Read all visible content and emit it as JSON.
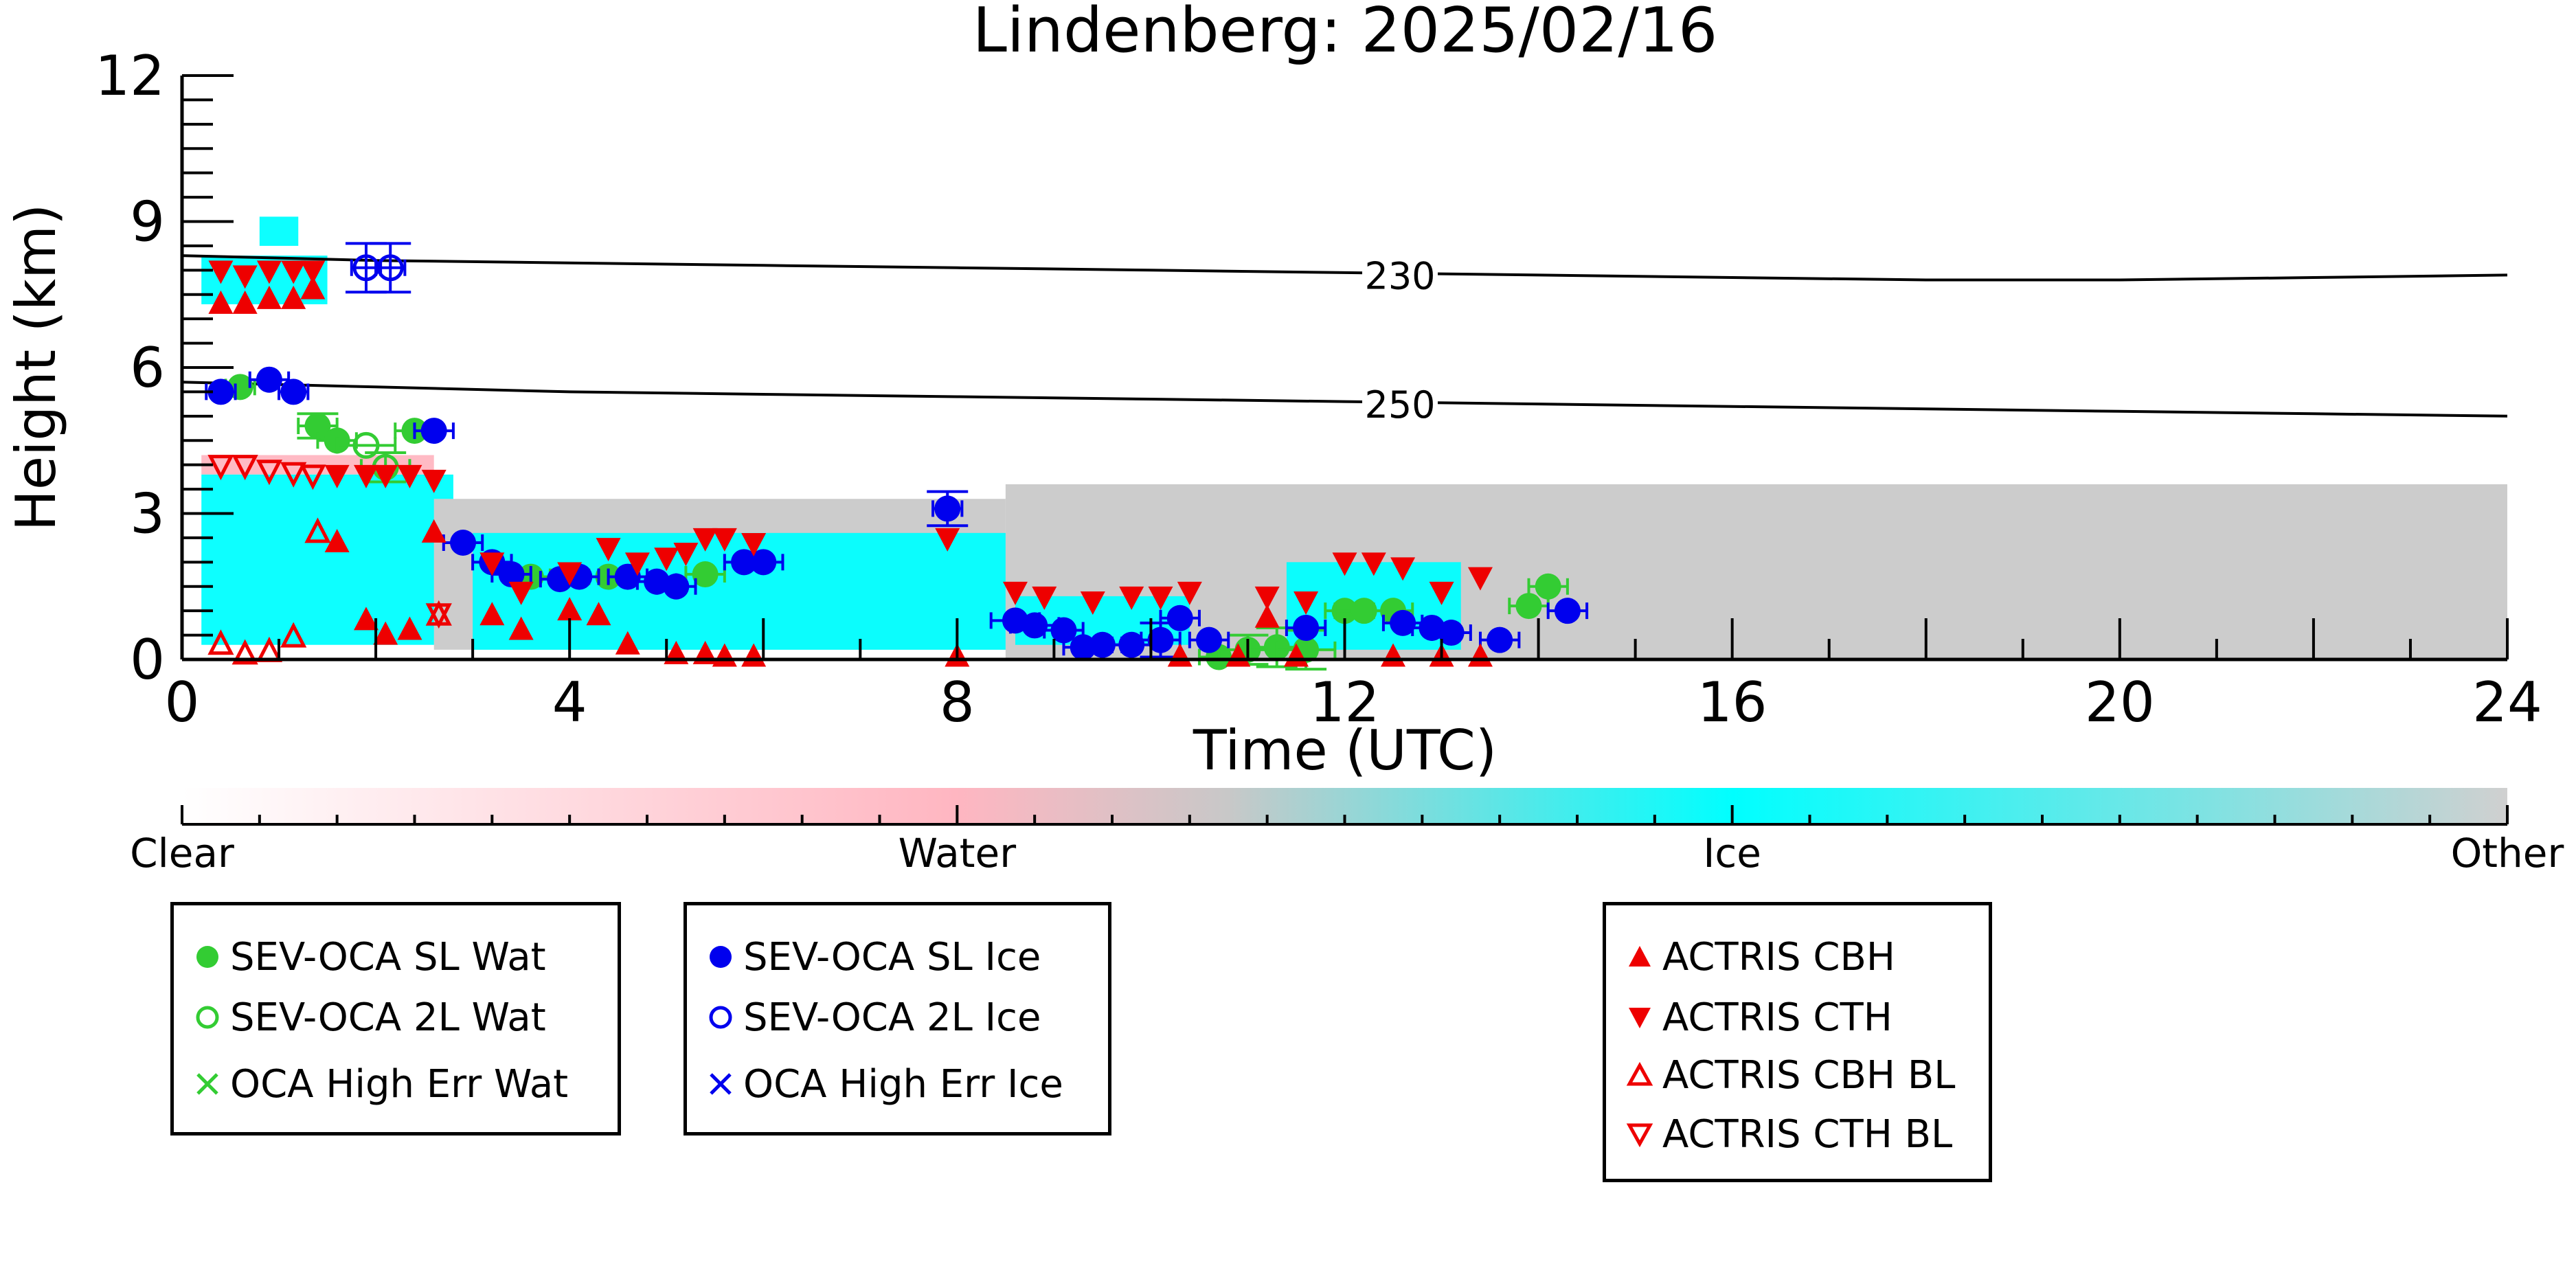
{
  "chart_data": {
    "type": "scatter",
    "title": "Lindenberg: 2025/02/16",
    "xlabel": "Time (UTC)",
    "ylabel": "Height (km)",
    "xlim": [
      0,
      24
    ],
    "ylim": [
      0,
      12
    ],
    "x_ticks": [
      0,
      4,
      8,
      12,
      16,
      20,
      24
    ],
    "y_ticks": [
      0,
      3,
      6,
      9,
      12
    ],
    "grid": false,
    "background_classification": {
      "type": "heatmap",
      "colorbar_labels": [
        "Clear",
        "Water",
        "Ice",
        "Other"
      ],
      "colors": {
        "Clear": "#ffffff",
        "Water": "#ffb6c1",
        "Ice": "#00ffff",
        "Other": "#cccccc"
      },
      "regions": [
        {
          "class": "Ice",
          "x": [
            0.2,
            1.5
          ],
          "y": [
            7.3,
            8.3
          ]
        },
        {
          "class": "Ice",
          "x": [
            0.8,
            1.2
          ],
          "y": [
            8.5,
            9.1
          ]
        },
        {
          "class": "Water",
          "x": [
            0.2,
            2.6
          ],
          "y": [
            3.8,
            4.2
          ]
        },
        {
          "class": "Ice",
          "x": [
            0.2,
            2.8
          ],
          "y": [
            0.3,
            3.8
          ]
        },
        {
          "class": "Other",
          "x": [
            2.6,
            8.5
          ],
          "y": [
            0.2,
            3.3
          ]
        },
        {
          "class": "Ice",
          "x": [
            3.0,
            8.6
          ],
          "y": [
            0.2,
            2.6
          ]
        },
        {
          "class": "Other",
          "x": [
            8.5,
            24
          ],
          "y": [
            0,
            3.6
          ]
        },
        {
          "class": "Ice",
          "x": [
            8.6,
            10.4
          ],
          "y": [
            0.3,
            1.3
          ]
        },
        {
          "class": "Ice",
          "x": [
            11.4,
            13.2
          ],
          "y": [
            0.2,
            2.0
          ]
        }
      ]
    },
    "contours": [
      {
        "label": "230",
        "x": [
          0,
          2,
          4,
          6,
          8,
          10,
          12,
          14,
          16,
          18,
          20,
          22,
          24
        ],
        "y": [
          8.3,
          8.2,
          8.15,
          8.1,
          8.05,
          8.0,
          7.95,
          7.9,
          7.85,
          7.8,
          7.8,
          7.85,
          7.9
        ]
      },
      {
        "label": "250",
        "x": [
          0,
          2,
          4,
          6,
          8,
          10,
          12,
          14,
          16,
          18,
          20,
          22,
          24
        ],
        "y": [
          5.7,
          5.6,
          5.5,
          5.45,
          5.4,
          5.35,
          5.3,
          5.25,
          5.2,
          5.15,
          5.1,
          5.05,
          5.0
        ]
      }
    ],
    "series": [
      {
        "name": "SEV-OCA SL Wat",
        "marker": "filled-circle",
        "color": "#33cc33",
        "x": [
          0.6,
          1.4,
          1.6,
          2.4,
          3.6,
          4.4,
          5.4,
          10.7,
          11.0,
          11.3,
          11.6,
          12.0,
          12.2,
          12.5,
          13.9,
          14.1
        ],
        "y": [
          5.6,
          4.8,
          4.5,
          4.7,
          1.7,
          1.7,
          1.75,
          0.05,
          0.2,
          0.25,
          0.2,
          1.0,
          1.0,
          1.0,
          1.1,
          1.5
        ],
        "xerr": [
          0.15,
          0.2,
          0.2,
          0.2,
          0.2,
          0.2,
          0.2,
          0.2,
          0.3,
          0.3,
          0.3,
          0.2,
          0.3,
          0.2,
          0.2,
          0.2
        ],
        "yerr": [
          0,
          0.25,
          0,
          0,
          0,
          0,
          0,
          0,
          0.3,
          0.4,
          0.4,
          0,
          0,
          0,
          0,
          0
        ]
      },
      {
        "name": "SEV-OCA 2L Wat",
        "marker": "open-circle",
        "color": "#33cc33",
        "x": [
          1.9,
          2.1
        ],
        "y": [
          4.4,
          3.95
        ],
        "xerr": [
          0.3,
          0.25
        ],
        "yerr": [
          0,
          0.3
        ]
      },
      {
        "name": "OCA High Err Wat",
        "marker": "x",
        "color": "#33cc33",
        "x": [],
        "y": []
      },
      {
        "name": "SEV-OCA SL Ice",
        "marker": "filled-circle",
        "color": "#0000ee",
        "x": [
          0.4,
          0.9,
          1.15,
          2.6,
          2.9,
          3.2,
          3.4,
          3.9,
          4.1,
          4.6,
          4.9,
          5.1,
          5.8,
          6.0,
          7.9,
          8.6,
          8.8,
          9.1,
          9.3,
          9.5,
          9.8,
          10.1,
          10.3,
          10.6,
          11.6,
          12.6,
          12.9,
          13.1,
          13.6,
          14.3
        ],
        "y": [
          5.5,
          5.75,
          5.5,
          4.7,
          2.4,
          2.0,
          1.75,
          1.65,
          1.7,
          1.7,
          1.6,
          1.5,
          2.0,
          2.0,
          3.1,
          0.8,
          0.7,
          0.6,
          0.25,
          0.3,
          0.3,
          0.4,
          0.85,
          0.4,
          0.65,
          0.75,
          0.65,
          0.55,
          0.4,
          1.0
        ],
        "xerr": [
          0.15,
          0.2,
          0.15,
          0.2,
          0.2,
          0.2,
          0.2,
          0.2,
          0.2,
          0.2,
          0.2,
          0.2,
          0.2,
          0.2,
          0.15,
          0.25,
          0.25,
          0.2,
          0.2,
          0.2,
          0.2,
          0.2,
          0.2,
          0.2,
          0.2,
          0.2,
          0.2,
          0.2,
          0.2,
          0.2
        ],
        "yerr": [
          0,
          0,
          0,
          0,
          0,
          0,
          0,
          0,
          0,
          0,
          0,
          0,
          0,
          0,
          0.35,
          0,
          0,
          0,
          0,
          0,
          0,
          0.35,
          0,
          0,
          0,
          0,
          0,
          0,
          0,
          0
        ]
      },
      {
        "name": "SEV-OCA 2L Ice",
        "marker": "open-circle",
        "color": "#0000ee",
        "x": [
          1.9,
          2.15
        ],
        "y": [
          8.05,
          8.05
        ],
        "xerr": [
          0.15,
          0.15
        ],
        "yerr": [
          0.5,
          0.5
        ]
      },
      {
        "name": "OCA High Err Ice",
        "marker": "x",
        "color": "#0000ee",
        "x": [],
        "y": []
      },
      {
        "name": "ACTRIS CBH",
        "marker": "triangle-up",
        "color": "#ee0000",
        "x": [
          0.4,
          0.65,
          0.9,
          1.15,
          1.35,
          1.6,
          1.9,
          2.1,
          2.35,
          2.6,
          3.2,
          3.5,
          4.0,
          4.3,
          4.6,
          5.1,
          5.4,
          5.6,
          5.9,
          8.0,
          10.3,
          10.9,
          11.2,
          11.5,
          12.5,
          13.0,
          13.4
        ],
        "y": [
          7.3,
          7.3,
          7.4,
          7.4,
          7.6,
          2.4,
          0.8,
          0.5,
          0.6,
          2.6,
          0.9,
          0.6,
          1.0,
          0.9,
          0.3,
          0.1,
          0.1,
          0.05,
          0.05,
          0.05,
          0.05,
          0.05,
          0.85,
          0.05,
          0.05,
          0.05,
          0.05
        ]
      },
      {
        "name": "ACTRIS CTH",
        "marker": "triangle-down",
        "color": "#ee0000",
        "x": [
          0.4,
          0.65,
          0.9,
          1.15,
          1.35,
          1.6,
          1.9,
          2.1,
          2.35,
          2.6,
          3.2,
          3.5,
          4.0,
          4.4,
          4.7,
          5.0,
          5.2,
          5.4,
          5.6,
          5.9,
          7.9,
          8.6,
          8.9,
          9.4,
          9.8,
          10.1,
          10.4,
          11.2,
          11.6,
          12.0,
          12.3,
          12.6,
          13.0,
          13.4
        ],
        "y": [
          8.0,
          7.9,
          8.0,
          8.0,
          8.0,
          3.8,
          3.8,
          3.8,
          3.8,
          3.7,
          2.0,
          1.4,
          1.8,
          2.3,
          2.0,
          2.1,
          2.2,
          2.5,
          2.5,
          2.4,
          2.5,
          1.4,
          1.3,
          1.2,
          1.3,
          1.3,
          1.4,
          1.3,
          1.2,
          2.0,
          2.0,
          1.9,
          1.4,
          1.7
        ]
      },
      {
        "name": "ACTRIS CBH BL",
        "marker": "open-triangle-up",
        "color": "#ee0000",
        "x": [
          0.4,
          0.65,
          0.9,
          1.15,
          1.4,
          2.65
        ],
        "y": [
          0.3,
          0.1,
          0.15,
          0.45,
          2.6,
          0.9
        ]
      },
      {
        "name": "ACTRIS CTH BL",
        "marker": "open-triangle-down",
        "color": "#ee0000",
        "x": [
          0.4,
          0.65,
          0.9,
          1.15,
          1.35,
          2.65
        ],
        "y": [
          4.0,
          4.0,
          3.9,
          3.85,
          3.8,
          0.95
        ]
      }
    ]
  },
  "legends": [
    {
      "items": [
        "SEV-OCA SL Wat",
        "SEV-OCA 2L Wat",
        "OCA High Err Wat"
      ]
    },
    {
      "items": [
        "SEV-OCA SL Ice",
        "SEV-OCA 2L Ice",
        "OCA High Err Ice"
      ]
    },
    {
      "items": [
        "ACTRIS CBH",
        "ACTRIS CTH",
        "ACTRIS CBH BL",
        "ACTRIS CTH BL"
      ]
    }
  ]
}
